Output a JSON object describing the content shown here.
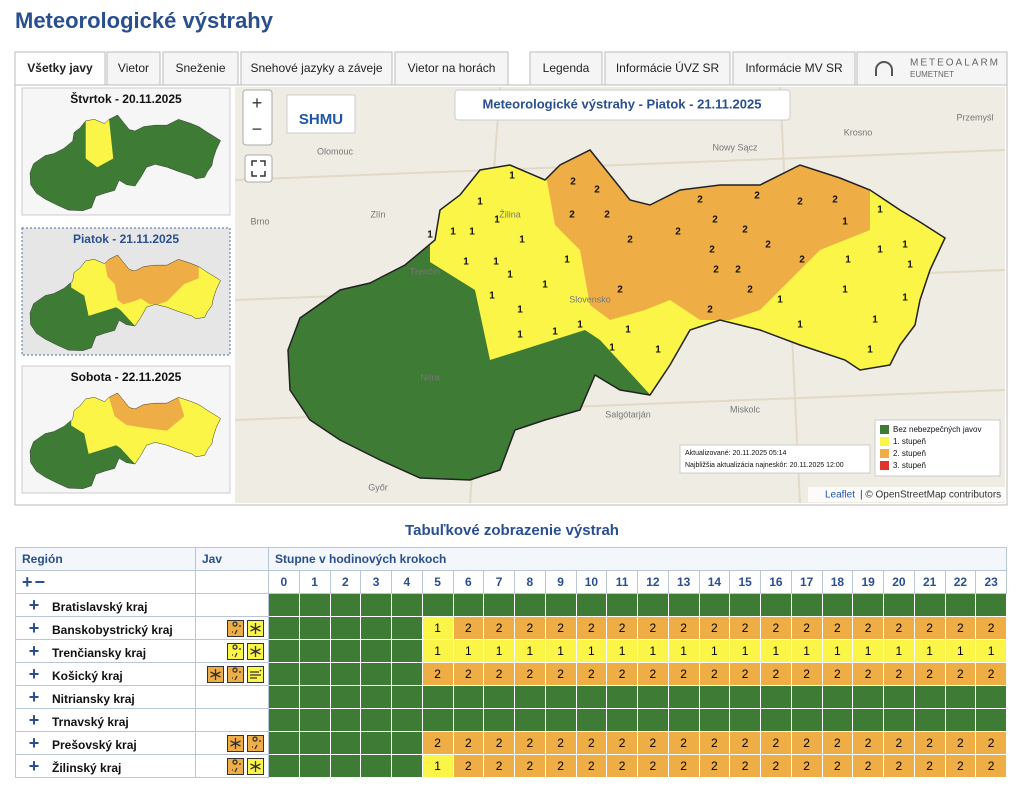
{
  "title": "Meteorologické výstrahy",
  "tabs": [
    "Všetky javy",
    "Vietor",
    "Sneženie",
    "Snehové jazyky a záveje",
    "Vietor na horách"
  ],
  "info_tabs": [
    "Legenda",
    "Informácie ÚVZ SR",
    "Informácie MV SR"
  ],
  "meteoalarm": {
    "name": "METEOALARM",
    "sub": "EUMETNET"
  },
  "days": [
    "Štvrtok - 20.11.2025",
    "Piatok - 21.11.2025",
    "Sobota - 22.11.2025"
  ],
  "map": {
    "zoom_in": "+",
    "zoom_out": "−",
    "logo": "SHMU",
    "title": "Meteorologické výstrahy - Piatok - 21.11.2025",
    "places": [
      "Olomouc",
      "Zlín",
      "Brno",
      "Trenčín",
      "Žilina",
      "Nitra",
      "Slovensko",
      "Győr",
      "Salgótarján",
      "Miskolc",
      "Krosno",
      "Nowy Sącz",
      "Przemyśl"
    ],
    "district_levels": [
      1,
      1,
      1,
      1,
      1,
      1,
      1,
      1,
      1,
      1,
      1,
      1,
      1,
      1,
      1,
      1,
      1,
      1,
      1,
      1,
      1,
      1,
      1,
      1,
      1,
      1,
      1,
      1,
      1,
      1,
      1,
      1,
      2,
      2,
      2,
      2,
      2,
      2,
      2,
      2,
      2,
      2,
      2,
      2,
      2,
      2,
      2,
      2,
      2,
      2,
      2,
      2
    ],
    "updated": "Aktualizované: 20.11.2025 05:14",
    "next_update": "Najbližšia aktualizácia najneskôr: 20.11.2025 12:00",
    "legend": [
      {
        "label": "Bez nebezpečných javov",
        "color": "#3e7b34"
      },
      {
        "label": "1. stupeň",
        "color": "#fbf548"
      },
      {
        "label": "2. stupeň",
        "color": "#eeae45"
      },
      {
        "label": "3. stupeň",
        "color": "#e0332b"
      }
    ],
    "attribution_link": "Leaflet",
    "attribution": "| © OpenStreetMap contributors"
  },
  "table": {
    "title": "Tabuľkové zobrazenie výstrah",
    "headers": [
      "Región",
      "Jav",
      "Stupne v hodinových krokoch"
    ],
    "expand_all": "+",
    "collapse_all": "−",
    "row_toggle": "+",
    "hours": [
      0,
      1,
      2,
      3,
      4,
      5,
      6,
      7,
      8,
      9,
      10,
      11,
      12,
      13,
      14,
      15,
      16,
      17,
      18,
      19,
      20,
      21,
      22,
      23
    ],
    "rows": [
      {
        "region": "Bratislavský kraj",
        "levels": [
          null,
          null,
          null,
          null,
          null,
          null,
          null,
          null,
          null,
          null,
          null,
          null,
          null,
          null,
          null,
          null,
          null,
          null,
          null,
          null,
          null,
          null,
          null,
          null
        ]
      },
      {
        "region": "Banskobystrický kraj",
        "levels": [
          null,
          null,
          null,
          null,
          null,
          1,
          2,
          2,
          2,
          2,
          2,
          2,
          2,
          2,
          2,
          2,
          2,
          2,
          2,
          2,
          2,
          2,
          2,
          2
        ]
      },
      {
        "region": "Trenčiansky kraj",
        "levels": [
          null,
          null,
          null,
          null,
          null,
          1,
          1,
          1,
          1,
          1,
          1,
          1,
          1,
          1,
          1,
          1,
          1,
          1,
          1,
          1,
          1,
          1,
          1,
          1
        ]
      },
      {
        "region": "Košický kraj",
        "levels": [
          null,
          null,
          null,
          null,
          null,
          2,
          2,
          2,
          2,
          2,
          2,
          2,
          2,
          2,
          2,
          2,
          2,
          2,
          2,
          2,
          2,
          2,
          2,
          2
        ]
      },
      {
        "region": "Nitriansky kraj",
        "levels": [
          null,
          null,
          null,
          null,
          null,
          null,
          null,
          null,
          null,
          null,
          null,
          null,
          null,
          null,
          null,
          null,
          null,
          null,
          null,
          null,
          null,
          null,
          null,
          null
        ]
      },
      {
        "region": "Trnavský kraj",
        "levels": [
          null,
          null,
          null,
          null,
          null,
          null,
          null,
          null,
          null,
          null,
          null,
          null,
          null,
          null,
          null,
          null,
          null,
          null,
          null,
          null,
          null,
          null,
          null,
          null
        ]
      },
      {
        "region": "Prešovský kraj",
        "levels": [
          null,
          null,
          null,
          null,
          null,
          2,
          2,
          2,
          2,
          2,
          2,
          2,
          2,
          2,
          2,
          2,
          2,
          2,
          2,
          2,
          2,
          2,
          2,
          2
        ]
      },
      {
        "region": "Žilinský kraj",
        "levels": [
          null,
          null,
          null,
          null,
          null,
          1,
          2,
          2,
          2,
          2,
          2,
          2,
          2,
          2,
          2,
          2,
          2,
          2,
          2,
          2,
          2,
          2,
          2,
          2
        ]
      }
    ]
  }
}
